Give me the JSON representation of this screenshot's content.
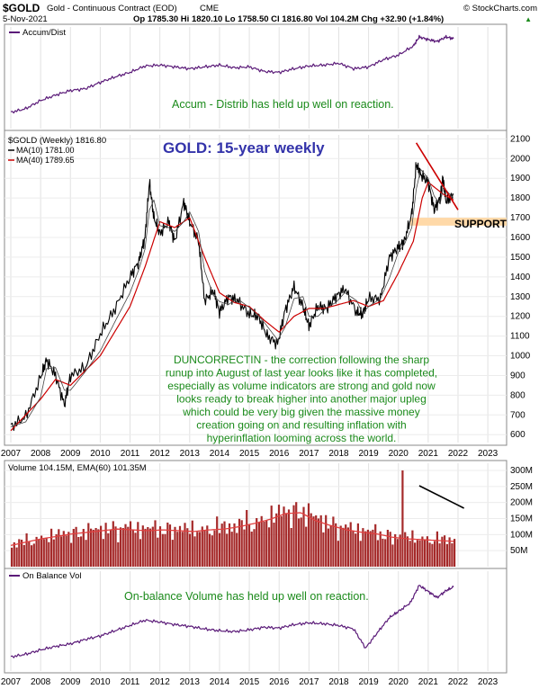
{
  "header": {
    "symbol": "$GOLD",
    "name": "Gold - Continuous Contract (EOD)",
    "exchange": "CME",
    "watermark": "© StockCharts.com",
    "date": "5-Nov-2021",
    "ohlc_text": "Op 1785.30  Hi 1820.10  Lo 1758.50  Cl 1816.80  Vol 104.2M  Chg +32.90 (+1.84%)",
    "change_arrow": "▲"
  },
  "x_axis": {
    "years": [
      "2007",
      "2008",
      "2009",
      "2010",
      "2011",
      "2012",
      "2013",
      "2014",
      "2015",
      "2016",
      "2017",
      "2018",
      "2019",
      "2020",
      "2021",
      "2022",
      "2023"
    ]
  },
  "accum_panel": {
    "legend": "Accum/Dist",
    "annotation": "Accum - Distrib has held up well on reaction."
  },
  "price_panel": {
    "legend_symbol": "$GOLD (Weekly) 1816.80",
    "legend_ma10": "MA(10) 1781.00",
    "legend_ma40": "MA(40) 1789.65",
    "title": "GOLD: 15-year weekly",
    "support_label": "SUPPORT",
    "commentary": [
      "DUNCORRECTIN - the correction following the sharp",
      "runup into August of last year looks like it has completed,",
      "especially as volume indicators are strong and gold now",
      "looks ready to break higher into another major upleg",
      "which could be very big given the massive money",
      "creation going on and resulting inflation with",
      "hyperinflation looming across the world."
    ]
  },
  "volume_panel": {
    "legend": "Volume 104.15M, EMA(60) 101.35M"
  },
  "obv_panel": {
    "legend": "On Balance Vol",
    "annotation": "On-balance Volume has held up well on reaction."
  },
  "colors": {
    "price": "#000000",
    "ma10": "#000000",
    "ma40": "#cc0000",
    "indicator": "#5a1a78",
    "volume_bar": "#a52a2a",
    "annotation_green": "#1a8a1a",
    "title_blue": "#3333aa",
    "trendline": "#cc0000",
    "support_band": "#ffd9a8"
  },
  "chart_data": [
    {
      "type": "line",
      "name": "accum_dist",
      "x": [
        2007.0,
        2007.5,
        2008.0,
        2008.5,
        2009.0,
        2009.5,
        2010.0,
        2010.5,
        2011.0,
        2011.5,
        2012.0,
        2012.5,
        2013.0,
        2013.5,
        2014.0,
        2014.5,
        2015.0,
        2015.5,
        2016.0,
        2016.5,
        2017.0,
        2017.5,
        2018.0,
        2018.5,
        2019.0,
        2019.5,
        2020.0,
        2020.5,
        2020.7,
        2021.0,
        2021.3,
        2021.6,
        2021.85
      ],
      "values": [
        0.12,
        0.16,
        0.25,
        0.31,
        0.36,
        0.38,
        0.45,
        0.51,
        0.56,
        0.63,
        0.64,
        0.62,
        0.6,
        0.62,
        0.64,
        0.61,
        0.62,
        0.57,
        0.56,
        0.6,
        0.63,
        0.64,
        0.66,
        0.6,
        0.62,
        0.7,
        0.75,
        0.85,
        0.95,
        0.92,
        0.9,
        0.95,
        0.93
      ],
      "ylim": [
        0,
        1
      ]
    },
    {
      "type": "line",
      "name": "gold_weekly",
      "x": [
        2007.0,
        2007.5,
        2008.0,
        2008.2,
        2008.5,
        2008.8,
        2009.0,
        2009.5,
        2010.0,
        2010.5,
        2011.0,
        2011.3,
        2011.5,
        2011.65,
        2011.8,
        2012.0,
        2012.3,
        2012.5,
        2012.8,
        2013.0,
        2013.3,
        2013.5,
        2013.8,
        2014.0,
        2014.3,
        2014.6,
        2015.0,
        2015.3,
        2015.6,
        2015.95,
        2016.2,
        2016.5,
        2016.8,
        2017.0,
        2017.3,
        2017.6,
        2017.9,
        2018.2,
        2018.6,
        2018.8,
        2019.0,
        2019.4,
        2019.7,
        2020.0,
        2020.2,
        2020.45,
        2020.6,
        2020.75,
        2021.0,
        2021.2,
        2021.4,
        2021.5,
        2021.6,
        2021.85
      ],
      "values": [
        640,
        690,
        890,
        980,
        900,
        750,
        900,
        940,
        1110,
        1240,
        1400,
        1480,
        1600,
        1880,
        1700,
        1620,
        1680,
        1580,
        1780,
        1680,
        1580,
        1280,
        1330,
        1220,
        1300,
        1280,
        1210,
        1200,
        1100,
        1060,
        1230,
        1350,
        1250,
        1150,
        1250,
        1240,
        1300,
        1340,
        1220,
        1210,
        1290,
        1290,
        1500,
        1550,
        1580,
        1720,
        1970,
        1920,
        1880,
        1740,
        1800,
        1900,
        1780,
        1817
      ],
      "ylim": [
        560,
        2120
      ]
    },
    {
      "type": "line",
      "name": "ma40",
      "x": [
        2007.0,
        2008.0,
        2008.5,
        2009.0,
        2010.0,
        2011.0,
        2011.5,
        2012.0,
        2012.5,
        2013.0,
        2013.5,
        2014.0,
        2014.5,
        2015.0,
        2015.5,
        2016.0,
        2016.5,
        2017.0,
        2017.5,
        2018.0,
        2018.5,
        2019.0,
        2019.5,
        2020.0,
        2020.5,
        2020.8,
        2021.0,
        2021.5,
        2021.85
      ],
      "values": [
        620,
        780,
        880,
        850,
        1000,
        1250,
        1450,
        1680,
        1650,
        1700,
        1500,
        1320,
        1270,
        1250,
        1180,
        1120,
        1200,
        1240,
        1240,
        1260,
        1280,
        1250,
        1280,
        1420,
        1580,
        1800,
        1880,
        1820,
        1790
      ],
      "ylim": [
        560,
        2120
      ]
    },
    {
      "type": "bar",
      "name": "volume",
      "x_range": [
        2007.0,
        2021.85
      ],
      "levels": [
        0.26,
        0.3,
        0.34,
        0.37,
        0.4,
        0.42,
        0.44,
        0.46,
        0.45,
        0.44,
        0.45,
        0.44,
        0.43,
        0.45,
        0.46,
        0.49,
        0.53,
        0.58,
        0.65,
        0.66,
        0.56,
        0.5,
        0.45,
        0.42,
        0.4,
        0.36,
        0.34,
        0.33,
        0.32,
        0.31
      ],
      "ylim_millions": [
        0,
        300
      ],
      "ticks": [
        "50M",
        "100M",
        "150M",
        "200M",
        "250M",
        "300M"
      ]
    },
    {
      "type": "line",
      "name": "on_balance_volume",
      "x": [
        2007.0,
        2007.5,
        2008.0,
        2008.5,
        2009.0,
        2009.5,
        2010.0,
        2010.5,
        2011.0,
        2011.5,
        2012.0,
        2012.5,
        2013.0,
        2013.5,
        2014.0,
        2014.5,
        2015.0,
        2015.5,
        2016.0,
        2016.5,
        2017.0,
        2017.5,
        2018.0,
        2018.5,
        2018.9,
        2019.3,
        2019.7,
        2020.0,
        2020.4,
        2020.7,
        2021.0,
        2021.3,
        2021.6,
        2021.85
      ],
      "values": [
        0.1,
        0.13,
        0.18,
        0.22,
        0.25,
        0.3,
        0.34,
        0.4,
        0.46,
        0.52,
        0.5,
        0.47,
        0.45,
        0.42,
        0.4,
        0.39,
        0.41,
        0.44,
        0.43,
        0.47,
        0.49,
        0.48,
        0.46,
        0.42,
        0.2,
        0.38,
        0.55,
        0.62,
        0.72,
        0.92,
        0.85,
        0.78,
        0.86,
        0.9
      ],
      "ylim": [
        0,
        1
      ]
    }
  ],
  "price_y_ticks": [
    600,
    700,
    800,
    900,
    1000,
    1100,
    1200,
    1300,
    1400,
    1500,
    1600,
    1700,
    1800,
    1900,
    2000,
    2100
  ]
}
